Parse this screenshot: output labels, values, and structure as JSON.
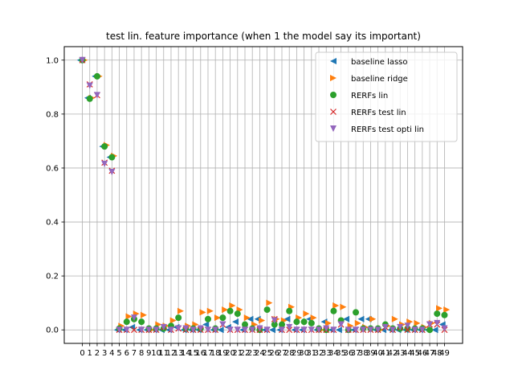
{
  "chart_data": {
    "type": "scatter",
    "title": "test lin. feature importance (when 1 the model say its important)",
    "xlabel": "",
    "ylabel": "",
    "x": [
      0,
      1,
      2,
      3,
      4,
      5,
      6,
      7,
      8,
      9,
      10,
      11,
      12,
      13,
      14,
      15,
      16,
      17,
      18,
      19,
      20,
      21,
      22,
      23,
      24,
      25,
      26,
      27,
      28,
      29,
      30,
      31,
      32,
      33,
      34,
      35,
      36,
      37,
      38,
      39,
      40,
      41,
      42,
      43,
      44,
      45,
      46,
      47,
      48,
      49
    ],
    "xlim": [
      -2.45,
      51.45
    ],
    "ylim": [
      -0.05,
      1.05
    ],
    "xticks": [
      0,
      1,
      2,
      3,
      4,
      5,
      6,
      7,
      8,
      9,
      10,
      11,
      12,
      13,
      14,
      15,
      16,
      17,
      18,
      19,
      20,
      21,
      22,
      23,
      24,
      25,
      26,
      27,
      28,
      29,
      30,
      31,
      32,
      33,
      34,
      35,
      36,
      37,
      38,
      39,
      40,
      41,
      42,
      43,
      44,
      45,
      46,
      47,
      48,
      49
    ],
    "yticks": [
      0.0,
      0.2,
      0.4,
      0.6,
      0.8,
      1.0
    ],
    "ytick_labels": [
      "0.0",
      "0.2",
      "0.4",
      "0.6",
      "0.8",
      "1.0"
    ],
    "grid": true,
    "legend_position": "upper right",
    "series": [
      {
        "name": "baseline lasso",
        "marker": "triangle-left",
        "color": "#1f77b4",
        "offset": -0.3,
        "values": [
          1.0,
          0.86,
          0.94,
          0.68,
          0.64,
          0.0,
          0.0,
          0.01,
          0.0,
          0.0,
          0.0,
          0.0,
          0.0,
          0.01,
          0.0,
          0.0,
          0.0,
          0.02,
          0.0,
          0.0,
          0.01,
          0.03,
          0.0,
          0.04,
          0.04,
          0.0,
          0.0,
          0.0,
          0.04,
          0.0,
          0.0,
          0.04,
          0.0,
          0.03,
          0.0,
          0.0,
          0.04,
          0.0,
          0.04,
          0.04,
          0.0,
          0.0,
          0.0,
          0.0,
          0.0,
          0.0,
          0.0,
          0.0,
          0.0,
          0.02
        ]
      },
      {
        "name": "baseline ridge",
        "marker": "triangle-right",
        "color": "#ff7f0e",
        "offset": 0.3,
        "values": [
          1.0,
          0.86,
          0.94,
          0.685,
          0.645,
          0.015,
          0.05,
          0.06,
          0.055,
          0.0,
          0.02,
          0.015,
          0.035,
          0.07,
          0.015,
          0.02,
          0.065,
          0.07,
          0.045,
          0.075,
          0.09,
          0.075,
          0.045,
          0.02,
          0.035,
          0.1,
          0.04,
          0.035,
          0.085,
          0.045,
          0.06,
          0.045,
          0.0,
          0.025,
          0.09,
          0.085,
          0.015,
          0.025,
          0.01,
          0.04,
          0.0,
          0.015,
          0.04,
          0.02,
          0.03,
          0.025,
          0.01,
          0.025,
          0.08,
          0.075
        ]
      },
      {
        "name": "RERFs lin",
        "marker": "circle",
        "color": "#2ca02c",
        "offset": 0.0,
        "values": [
          1.0,
          0.857,
          0.94,
          0.68,
          0.64,
          0.005,
          0.03,
          0.04,
          0.03,
          0.005,
          0.005,
          0.005,
          0.015,
          0.045,
          0.005,
          0.005,
          0.005,
          0.04,
          0.005,
          0.045,
          0.07,
          0.06,
          0.02,
          0.005,
          0.0,
          0.075,
          0.02,
          0.02,
          0.07,
          0.03,
          0.03,
          0.025,
          0.005,
          0.0,
          0.07,
          0.035,
          0.0,
          0.065,
          0.005,
          0.005,
          0.005,
          0.02,
          0.005,
          0.005,
          0.005,
          0.005,
          0.005,
          0.0,
          0.06,
          0.055
        ]
      },
      {
        "name": "RERFs test lin",
        "marker": "x",
        "color": "#d62728",
        "offset": 0.0,
        "values": [
          1.0,
          0.91,
          0.87,
          0.62,
          0.59,
          0.0,
          0.0,
          0.0,
          0.0,
          0.0,
          0.0,
          0.01,
          0.0,
          0.005,
          0.0,
          0.0,
          0.0,
          0.0,
          0.0,
          0.02,
          0.0,
          0.0,
          0.0,
          0.0,
          0.0,
          0.0,
          0.04,
          0.0,
          0.0,
          0.0,
          0.0,
          0.0,
          0.0,
          0.0,
          0.0,
          0.02,
          0.0,
          0.0,
          0.0,
          0.0,
          0.0,
          0.01,
          0.0,
          0.01,
          0.0,
          0.0,
          0.0,
          0.02,
          0.02,
          0.0
        ]
      },
      {
        "name": "RERFs test opti lin",
        "marker": "triangle-down",
        "color": "#9467bd",
        "offset": 0.0,
        "values": [
          1.0,
          0.905,
          0.87,
          0.615,
          0.585,
          0.0,
          0.0,
          0.045,
          0.0,
          0.0,
          0.0,
          0.01,
          0.0,
          0.005,
          0.005,
          0.0,
          0.005,
          0.0,
          0.0,
          0.02,
          0.0,
          0.0,
          0.0,
          0.0,
          0.005,
          0.0,
          0.035,
          0.0,
          0.01,
          0.0,
          0.0,
          0.0,
          0.0,
          0.005,
          0.0,
          0.02,
          0.0,
          0.0,
          0.0,
          0.0,
          0.0,
          0.01,
          0.0,
          0.01,
          0.015,
          0.0,
          0.0,
          0.02,
          0.025,
          0.005
        ]
      }
    ]
  }
}
